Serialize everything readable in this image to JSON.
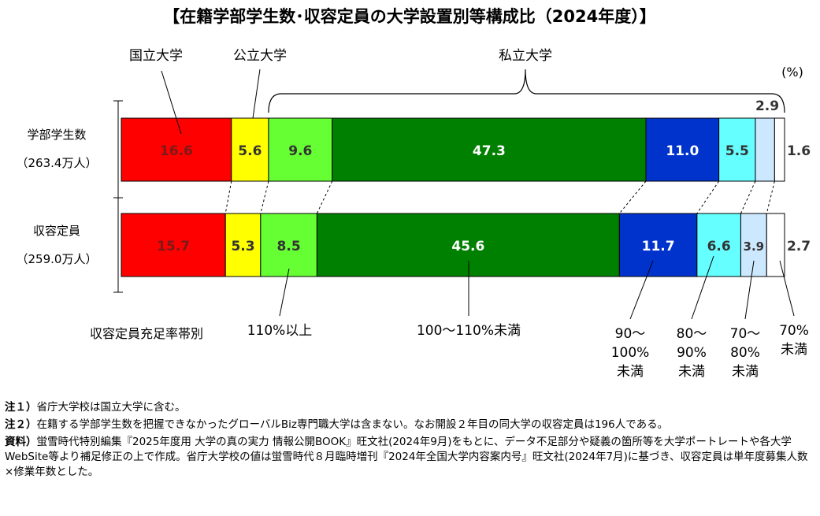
{
  "chart_data": {
    "type": "bar",
    "orientation": "horizontal-stacked-100",
    "title": "【在籍学部学生数･収容定員の大学設置別等構成比（2024年度）】",
    "unit_label": "(%)",
    "group_labels": [
      "国立大学",
      "公立大学",
      "私立大学"
    ],
    "rows": [
      {
        "label": "学部学生数",
        "sublabel": "（263.4万人）"
      },
      {
        "label": "収容定員",
        "sublabel": "（259.0万人）"
      }
    ],
    "series": [
      {
        "name": "国立大学",
        "color": "#ff0000",
        "values": [
          16.6,
          15.7
        ],
        "label_color": "#7a1a1a"
      },
      {
        "name": "公立大学",
        "color": "#ffff00",
        "values": [
          5.6,
          5.3
        ],
        "label_color": "#333333"
      },
      {
        "name": "110%以上",
        "color": "#66ff33",
        "values": [
          9.6,
          8.5
        ],
        "label_color": "#333333"
      },
      {
        "name": "100～110%未満",
        "color": "#008000",
        "values": [
          47.3,
          45.6
        ],
        "label_color": "#ffffff"
      },
      {
        "name": "90～100%未満",
        "color": "#0033cc",
        "values": [
          11.0,
          11.7
        ],
        "label_color": "#ffffff"
      },
      {
        "name": "80～90%未満",
        "color": "#66ffff",
        "values": [
          5.5,
          6.6
        ],
        "label_color": "#333333"
      },
      {
        "name": "70～80%未満",
        "color": "#cce8ff",
        "values": [
          2.9,
          3.9
        ],
        "label_color": "#333333"
      },
      {
        "name": "70%未満",
        "color": "#ffffff",
        "values": [
          1.6,
          2.7
        ],
        "label_color": "#333333"
      }
    ],
    "category_heading": "収容定員充足率帯別",
    "category_labels": [
      "110%以上",
      "100～110%未満",
      "90～\n100%\n未満",
      "80～\n90%\n未満",
      "70～\n80%\n未満",
      "70%\n未満"
    ],
    "xlim": [
      0,
      100
    ]
  },
  "notes": {
    "note1_tag": "注１）",
    "note1_text": "省庁大学校は国立大学に含む。",
    "note2_tag": "注２）",
    "note2_text": "在籍する学部学生数を把握できなかったグローバルBiz専門職大学は含まない。なお開設２年目の同大学の収容定員は196人である。",
    "source_tag": "資料）",
    "source_text": "蛍雪時代特別編集『2025年度用 大学の真の実力 情報公開BOOK』旺文社(2024年9月)をもとに、データ不足部分や疑義の箇所等を大学ポートレートや各大学WebSite等より補足修正の上で作成。省庁大学校の値は蛍雪時代８月臨時増刊『2024年全国大学内容案内号』旺文社(2024年7月)に基づき、収容定員は単年度募集人数×修業年数とした。"
  }
}
